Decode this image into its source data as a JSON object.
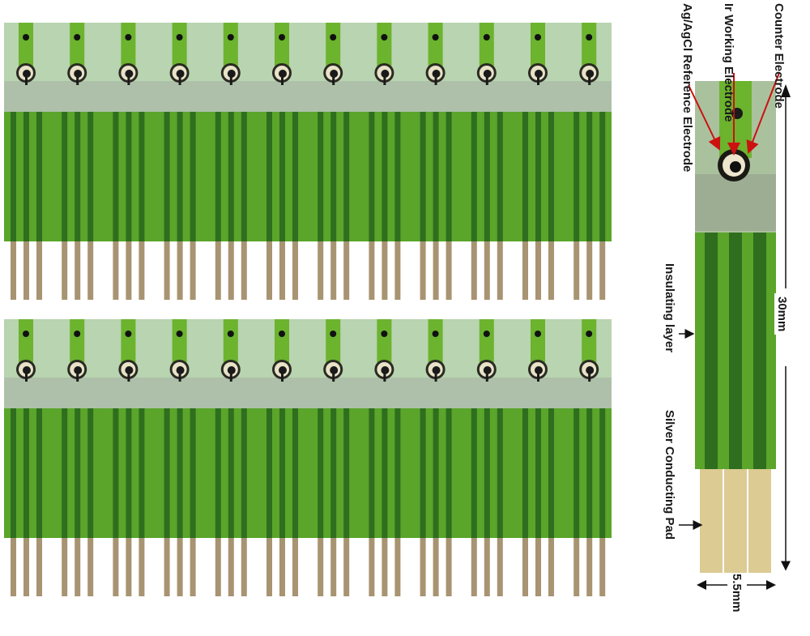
{
  "labels": {
    "counter_electrode": "Counter Electrode",
    "working_electrode": "Ir Working Electrode",
    "reference_electrode": "Ag/AgCl Reference Electrode",
    "insulating_layer": "Insulating layer",
    "conducting_pad": "Silver Conducting Pad",
    "length_dim": "30mm",
    "width_dim": "5.5mm"
  },
  "colors": {
    "background": "#ffffff",
    "substrate_top": "#b8d4b0",
    "green_trace": "#6cb32e",
    "green_layer": "#5aa52a",
    "dark_stripe": "#2e6e1e",
    "silver_pad": "#a89472",
    "pad_gap": "#ffffff",
    "arrow_red": "#cc1111",
    "dim_black": "#111111"
  }
}
